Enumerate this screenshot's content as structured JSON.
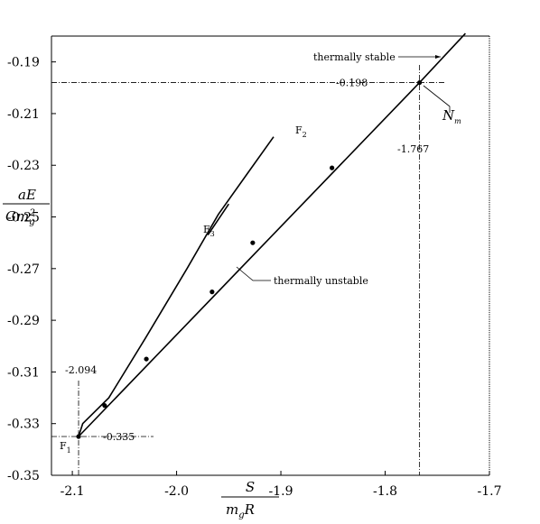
{
  "chart_data": {
    "type": "line",
    "xlabel": {
      "numerator": "S",
      "denominator_main": "m",
      "denominator_sub": "g",
      "denominator_tail": "R"
    },
    "ylabel": {
      "numerator": "aE",
      "denominator_main": "Gm",
      "denominator_sub": "g",
      "denominator_sup": "2"
    },
    "xlim": [
      -2.12,
      -1.7
    ],
    "ylim": [
      -0.35,
      -0.18
    ],
    "xticks": [
      {
        "value": -2.1,
        "label": "-2.1"
      },
      {
        "value": -2.0,
        "label": "-2.0"
      },
      {
        "value": -1.9,
        "label": "-1.9"
      },
      {
        "value": -1.8,
        "label": "-1.8"
      },
      {
        "value": -1.7,
        "label": "-1.7"
      }
    ],
    "yticks": [
      {
        "value": -0.19,
        "label": "-0.19"
      },
      {
        "value": -0.21,
        "label": "-0.21"
      },
      {
        "value": -0.23,
        "label": "-0.23"
      },
      {
        "value": -0.25,
        "label": "-0.25"
      },
      {
        "value": -0.27,
        "label": "-0.27"
      },
      {
        "value": -0.29,
        "label": "-0.29"
      },
      {
        "value": -0.31,
        "label": "-0.31"
      },
      {
        "value": -0.33,
        "label": "-0.33"
      },
      {
        "value": -0.35,
        "label": "-0.35"
      }
    ],
    "series": [
      {
        "points": [
          [
            -2.094,
            -0.335
          ],
          [
            -1.767,
            -0.198
          ],
          [
            -1.723,
            -0.179
          ]
        ]
      },
      {
        "points": [
          [
            -2.094,
            -0.335
          ],
          [
            -2.09,
            -0.33
          ],
          [
            -2.065,
            -0.32
          ],
          [
            -2.03,
            -0.297
          ],
          [
            -1.99,
            -0.27
          ],
          [
            -1.96,
            -0.249
          ],
          [
            -1.93,
            -0.232
          ],
          [
            -1.907,
            -0.219
          ]
        ]
      },
      {
        "points": [
          [
            -1.97,
            -0.257
          ],
          [
            -1.95,
            -0.245
          ]
        ]
      }
    ],
    "markers": [
      [
        -2.094,
        -0.335
      ],
      [
        -2.069,
        -0.323
      ],
      [
        -2.029,
        -0.305
      ],
      [
        -1.966,
        -0.279
      ],
      [
        -1.927,
        -0.26
      ],
      [
        -1.851,
        -0.231
      ],
      [
        -1.767,
        -0.198
      ]
    ],
    "reference": {
      "x_label": "-1.767",
      "y_label": "-0.198",
      "x2_label": "-2.094",
      "y2_label": "-0.335"
    },
    "annotations": {
      "stable": "thermally stable",
      "unstable": "thermally unstable",
      "nm": {
        "main": "N",
        "sub": "m"
      },
      "f1": {
        "main": "F",
        "sub": "1"
      },
      "f2": {
        "main": "F",
        "sub": "2"
      },
      "f3": {
        "main": "F",
        "sub": "3"
      }
    }
  }
}
